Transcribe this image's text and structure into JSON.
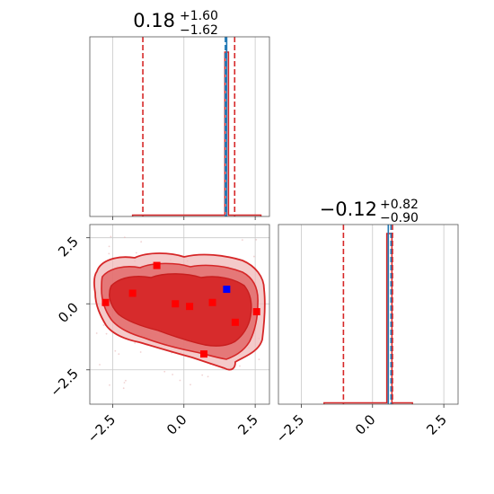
{
  "chart_data": [
    {
      "type": "histogram",
      "panel": "top-left",
      "title": {
        "value": "0.18",
        "plus": "+1.60",
        "minus": "−1.62"
      },
      "xlim": [
        -3.3,
        3.0
      ],
      "grid": true,
      "quantile_lines": {
        "color": "#d62728",
        "x": [
          -1.44,
          0.18,
          1.78
        ]
      },
      "truth_line": {
        "color": "#1f77b4",
        "x": 1.5
      },
      "histogram_outline_color": "#d62728",
      "histogram_peak_x": 1.5
    },
    {
      "type": "histogram",
      "panel": "bottom-right",
      "title": {
        "value": "−0.12",
        "plus": "+0.82",
        "minus": "−0.90"
      },
      "xlim": [
        -3.3,
        3.0
      ],
      "grid": true,
      "xticks": [
        "−2.5",
        "0.0",
        "2.5"
      ],
      "quantile_lines": {
        "color": "#d62728",
        "x": [
          -1.02,
          -0.12,
          0.7
        ]
      },
      "truth_line": {
        "color": "#1f77b4",
        "x": 0.6
      }
    },
    {
      "type": "contour",
      "panel": "bottom-left",
      "xlim": [
        -3.3,
        3.0
      ],
      "ylim": [
        -3.8,
        3.0
      ],
      "grid": true,
      "xticks": [
        "−2.5",
        "0.0",
        "2.5"
      ],
      "yticks": [
        "2.5",
        "0.0",
        "−2.5"
      ],
      "contour_color": "#d62728",
      "red_markers": [
        {
          "x": -0.95,
          "y": 1.45
        },
        {
          "x": -1.8,
          "y": 0.4
        },
        {
          "x": -2.75,
          "y": 0.05
        },
        {
          "x": -0.3,
          "y": 0.0
        },
        {
          "x": 0.2,
          "y": -0.1
        },
        {
          "x": 1.0,
          "y": 0.05
        },
        {
          "x": 1.8,
          "y": -0.7
        },
        {
          "x": 2.55,
          "y": -0.3
        },
        {
          "x": 0.7,
          "y": -1.9
        }
      ],
      "blue_marker": {
        "x": 1.5,
        "y": 0.55
      },
      "marker_colors": {
        "red": "#ff0000",
        "blue": "#0000ff"
      }
    }
  ]
}
